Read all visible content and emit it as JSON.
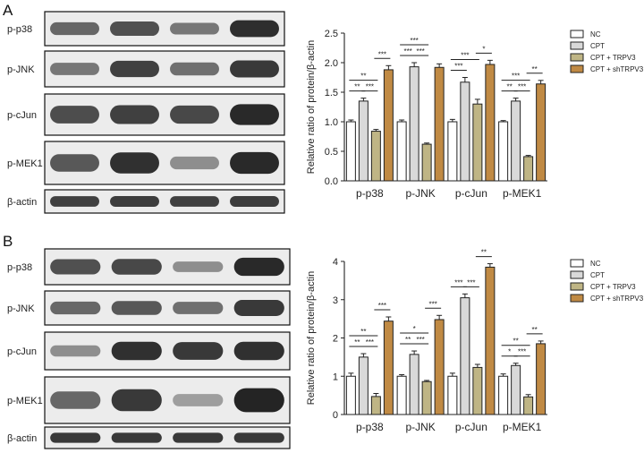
{
  "colors": {
    "NC": "#ffffff",
    "CPT": "#d9d9d9",
    "CPT + TRPV3": "#bfb585",
    "CPT + shTRPV3": "#c08a44"
  },
  "chart_data": [
    {
      "panel": "A",
      "type": "bar",
      "categories": [
        "p-p38",
        "p-JNK",
        "p-cJun",
        "p-MEK1"
      ],
      "ylabel": "Relative ratio of protein/β-actin",
      "ylim": [
        0,
        2.5
      ],
      "yticks": [
        0,
        0.5,
        1.0,
        1.5,
        2.0,
        2.5
      ],
      "ytick_labels": [
        "0.0",
        "0.5",
        "1.0",
        "1.5",
        "2.0",
        "2.5"
      ],
      "legend_position": "top-right",
      "series": [
        {
          "name": "NC",
          "values": [
            1.0,
            1.0,
            1.0,
            1.0
          ],
          "errors": [
            0.03,
            0.03,
            0.04,
            0.02
          ]
        },
        {
          "name": "CPT",
          "values": [
            1.35,
            1.93,
            1.67,
            1.35
          ],
          "errors": [
            0.05,
            0.07,
            0.08,
            0.05
          ]
        },
        {
          "name": "CPT + TRPV3",
          "values": [
            0.84,
            0.62,
            1.3,
            0.41
          ],
          "errors": [
            0.03,
            0.02,
            0.08,
            0.02
          ]
        },
        {
          "name": "CPT + shTRPV3",
          "values": [
            1.88,
            1.92,
            1.97,
            1.64
          ],
          "errors": [
            0.07,
            0.06,
            0.07,
            0.06
          ]
        }
      ],
      "significance": [
        {
          "cat": 0,
          "from": 0,
          "to": 1,
          "label": "**",
          "tier": 1
        },
        {
          "cat": 0,
          "from": 1,
          "to": 2,
          "label": "***",
          "tier": 1
        },
        {
          "cat": 0,
          "from": 0,
          "to": 2,
          "label": "**",
          "tier": 2
        },
        {
          "cat": 0,
          "from": 2,
          "to": 3,
          "label": "***",
          "tier": 3
        },
        {
          "cat": 1,
          "from": 0,
          "to": 1,
          "label": "***",
          "tier": 1
        },
        {
          "cat": 1,
          "from": 1,
          "to": 2,
          "label": "***",
          "tier": 1
        },
        {
          "cat": 1,
          "from": 0,
          "to": 2,
          "label": "***",
          "tier": 2
        },
        {
          "cat": 2,
          "from": 0,
          "to": 1,
          "label": "***",
          "tier": 1
        },
        {
          "cat": 2,
          "from": 0,
          "to": 2,
          "label": "***",
          "tier": 2
        },
        {
          "cat": 2,
          "from": 2,
          "to": 3,
          "label": "*",
          "tier": 3
        },
        {
          "cat": 3,
          "from": 0,
          "to": 1,
          "label": "**",
          "tier": 1
        },
        {
          "cat": 3,
          "from": 1,
          "to": 2,
          "label": "***",
          "tier": 1
        },
        {
          "cat": 3,
          "from": 0,
          "to": 2,
          "label": "***",
          "tier": 2
        },
        {
          "cat": 3,
          "from": 2,
          "to": 3,
          "label": "**",
          "tier": 3
        }
      ]
    },
    {
      "panel": "B",
      "type": "bar",
      "categories": [
        "p-p38",
        "p-JNK",
        "p-cJun",
        "p-MEK1"
      ],
      "ylabel": "Relative ratio of protein/β-actin",
      "ylim": [
        0,
        4
      ],
      "yticks": [
        0,
        1,
        2,
        3,
        4
      ],
      "ytick_labels": [
        "0",
        "1",
        "2",
        "3",
        "4"
      ],
      "legend_position": "top-right",
      "series": [
        {
          "name": "NC",
          "values": [
            1.0,
            1.0,
            1.0,
            1.0
          ],
          "errors": [
            0.08,
            0.04,
            0.08,
            0.06
          ]
        },
        {
          "name": "CPT",
          "values": [
            1.5,
            1.57,
            3.05,
            1.28
          ],
          "errors": [
            0.09,
            0.09,
            0.1,
            0.06
          ]
        },
        {
          "name": "CPT + TRPV3",
          "values": [
            0.47,
            0.86,
            1.23,
            0.46
          ],
          "errors": [
            0.08,
            0.03,
            0.08,
            0.06
          ]
        },
        {
          "name": "CPT + shTRPV3",
          "values": [
            2.44,
            2.48,
            3.85,
            1.85
          ],
          "errors": [
            0.11,
            0.11,
            0.09,
            0.07
          ]
        }
      ],
      "significance": [
        {
          "cat": 0,
          "from": 0,
          "to": 1,
          "label": "**",
          "tier": 1
        },
        {
          "cat": 0,
          "from": 1,
          "to": 2,
          "label": "***",
          "tier": 1
        },
        {
          "cat": 0,
          "from": 0,
          "to": 2,
          "label": "**",
          "tier": 2
        },
        {
          "cat": 0,
          "from": 2,
          "to": 3,
          "label": "***",
          "tier": 3
        },
        {
          "cat": 1,
          "from": 0,
          "to": 1,
          "label": "**",
          "tier": 1
        },
        {
          "cat": 1,
          "from": 1,
          "to": 2,
          "label": "***",
          "tier": 1
        },
        {
          "cat": 1,
          "from": 0,
          "to": 2,
          "label": "*",
          "tier": 2
        },
        {
          "cat": 1,
          "from": 2,
          "to": 3,
          "label": "***",
          "tier": 3
        },
        {
          "cat": 2,
          "from": 0,
          "to": 1,
          "label": "***",
          "tier": 1
        },
        {
          "cat": 2,
          "from": 1,
          "to": 2,
          "label": "***",
          "tier": 1
        },
        {
          "cat": 2,
          "from": 2,
          "to": 3,
          "label": "**",
          "tier": 3
        },
        {
          "cat": 3,
          "from": 0,
          "to": 1,
          "label": "*",
          "tier": 1
        },
        {
          "cat": 3,
          "from": 1,
          "to": 2,
          "label": "***",
          "tier": 1
        },
        {
          "cat": 3,
          "from": 0,
          "to": 2,
          "label": "**",
          "tier": 2
        },
        {
          "cat": 3,
          "from": 2,
          "to": 3,
          "label": "**",
          "tier": 3
        }
      ]
    }
  ],
  "blots": [
    {
      "panel_label": "A",
      "rows": [
        {
          "label": "p-p38",
          "intensity": [
            0.55,
            0.7,
            0.45,
            0.92
          ]
        },
        {
          "label": "p-JNK",
          "intensity": [
            0.45,
            0.8,
            0.5,
            0.85
          ]
        },
        {
          "label": "p-cJun",
          "intensity": [
            0.72,
            0.8,
            0.75,
            0.95
          ]
        },
        {
          "label": "p-MEK1",
          "intensity": [
            0.65,
            0.9,
            0.3,
            0.95
          ]
        },
        {
          "label": "β-actin",
          "intensity": [
            0.8,
            0.82,
            0.8,
            0.82
          ]
        }
      ]
    },
    {
      "panel_label": "B",
      "rows": [
        {
          "label": "p-p38",
          "intensity": [
            0.7,
            0.75,
            0.3,
            0.95
          ]
        },
        {
          "label": "p-JNK",
          "intensity": [
            0.55,
            0.65,
            0.5,
            0.85
          ]
        },
        {
          "label": "p-cJun",
          "intensity": [
            0.3,
            0.9,
            0.85,
            0.9
          ]
        },
        {
          "label": "p-MEK1",
          "intensity": [
            0.55,
            0.85,
            0.2,
            0.98
          ]
        },
        {
          "label": "β-actin",
          "intensity": [
            0.85,
            0.85,
            0.85,
            0.85
          ]
        }
      ]
    }
  ]
}
